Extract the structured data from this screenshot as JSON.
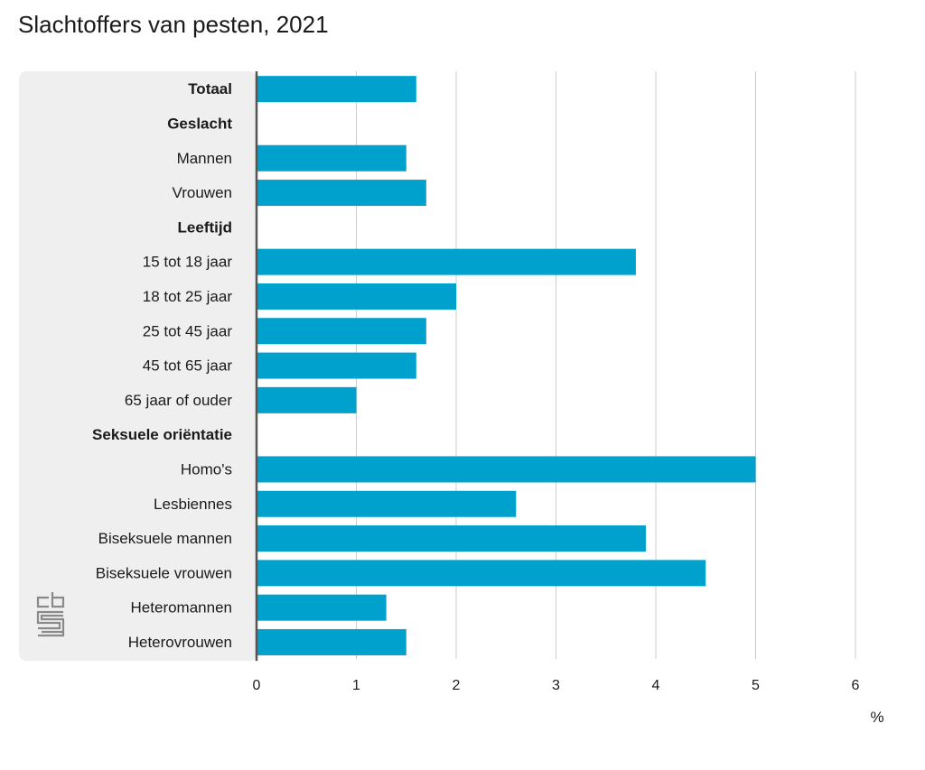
{
  "title": "Slachtoffers van pesten, 2021",
  "colors": {
    "bar": "#00a1cd",
    "panel": "#efefef",
    "grid": "#cccccc",
    "axis": "#555555",
    "logo": "#8a8a8a"
  },
  "logo": {
    "icon": "cbs-logo-icon"
  },
  "chart_data": {
    "type": "bar",
    "orientation": "horizontal",
    "title": "Slachtoffers van pesten, 2021",
    "unit": "%",
    "xlim": [
      0,
      6
    ],
    "xticks": [
      "0",
      "1",
      "2",
      "3",
      "4",
      "5",
      "6"
    ],
    "grid": true,
    "categories": [
      {
        "label": "Totaal",
        "header": true,
        "value": 1.6
      },
      {
        "label": "Geslacht",
        "header": true,
        "value": null
      },
      {
        "label": "Mannen",
        "header": false,
        "value": 1.5
      },
      {
        "label": "Vrouwen",
        "header": false,
        "value": 1.7
      },
      {
        "label": "Leeftijd",
        "header": true,
        "value": null
      },
      {
        "label": "15 tot 18 jaar",
        "header": false,
        "value": 3.8
      },
      {
        "label": "18 tot 25 jaar",
        "header": false,
        "value": 2.0
      },
      {
        "label": "25 tot 45 jaar",
        "header": false,
        "value": 1.7
      },
      {
        "label": "45 tot 65 jaar",
        "header": false,
        "value": 1.6
      },
      {
        "label": "65 jaar of ouder",
        "header": false,
        "value": 1.0
      },
      {
        "label": "Seksuele oriëntatie",
        "header": true,
        "value": null
      },
      {
        "label": "Homo's",
        "header": false,
        "value": 5.0
      },
      {
        "label": "Lesbiennes",
        "header": false,
        "value": 2.6
      },
      {
        "label": "Biseksuele mannen",
        "header": false,
        "value": 3.9
      },
      {
        "label": "Biseksuele vrouwen",
        "header": false,
        "value": 4.5
      },
      {
        "label": "Heteromannen",
        "header": false,
        "value": 1.3
      },
      {
        "label": "Heterovrouwen",
        "header": false,
        "value": 1.5
      }
    ]
  }
}
